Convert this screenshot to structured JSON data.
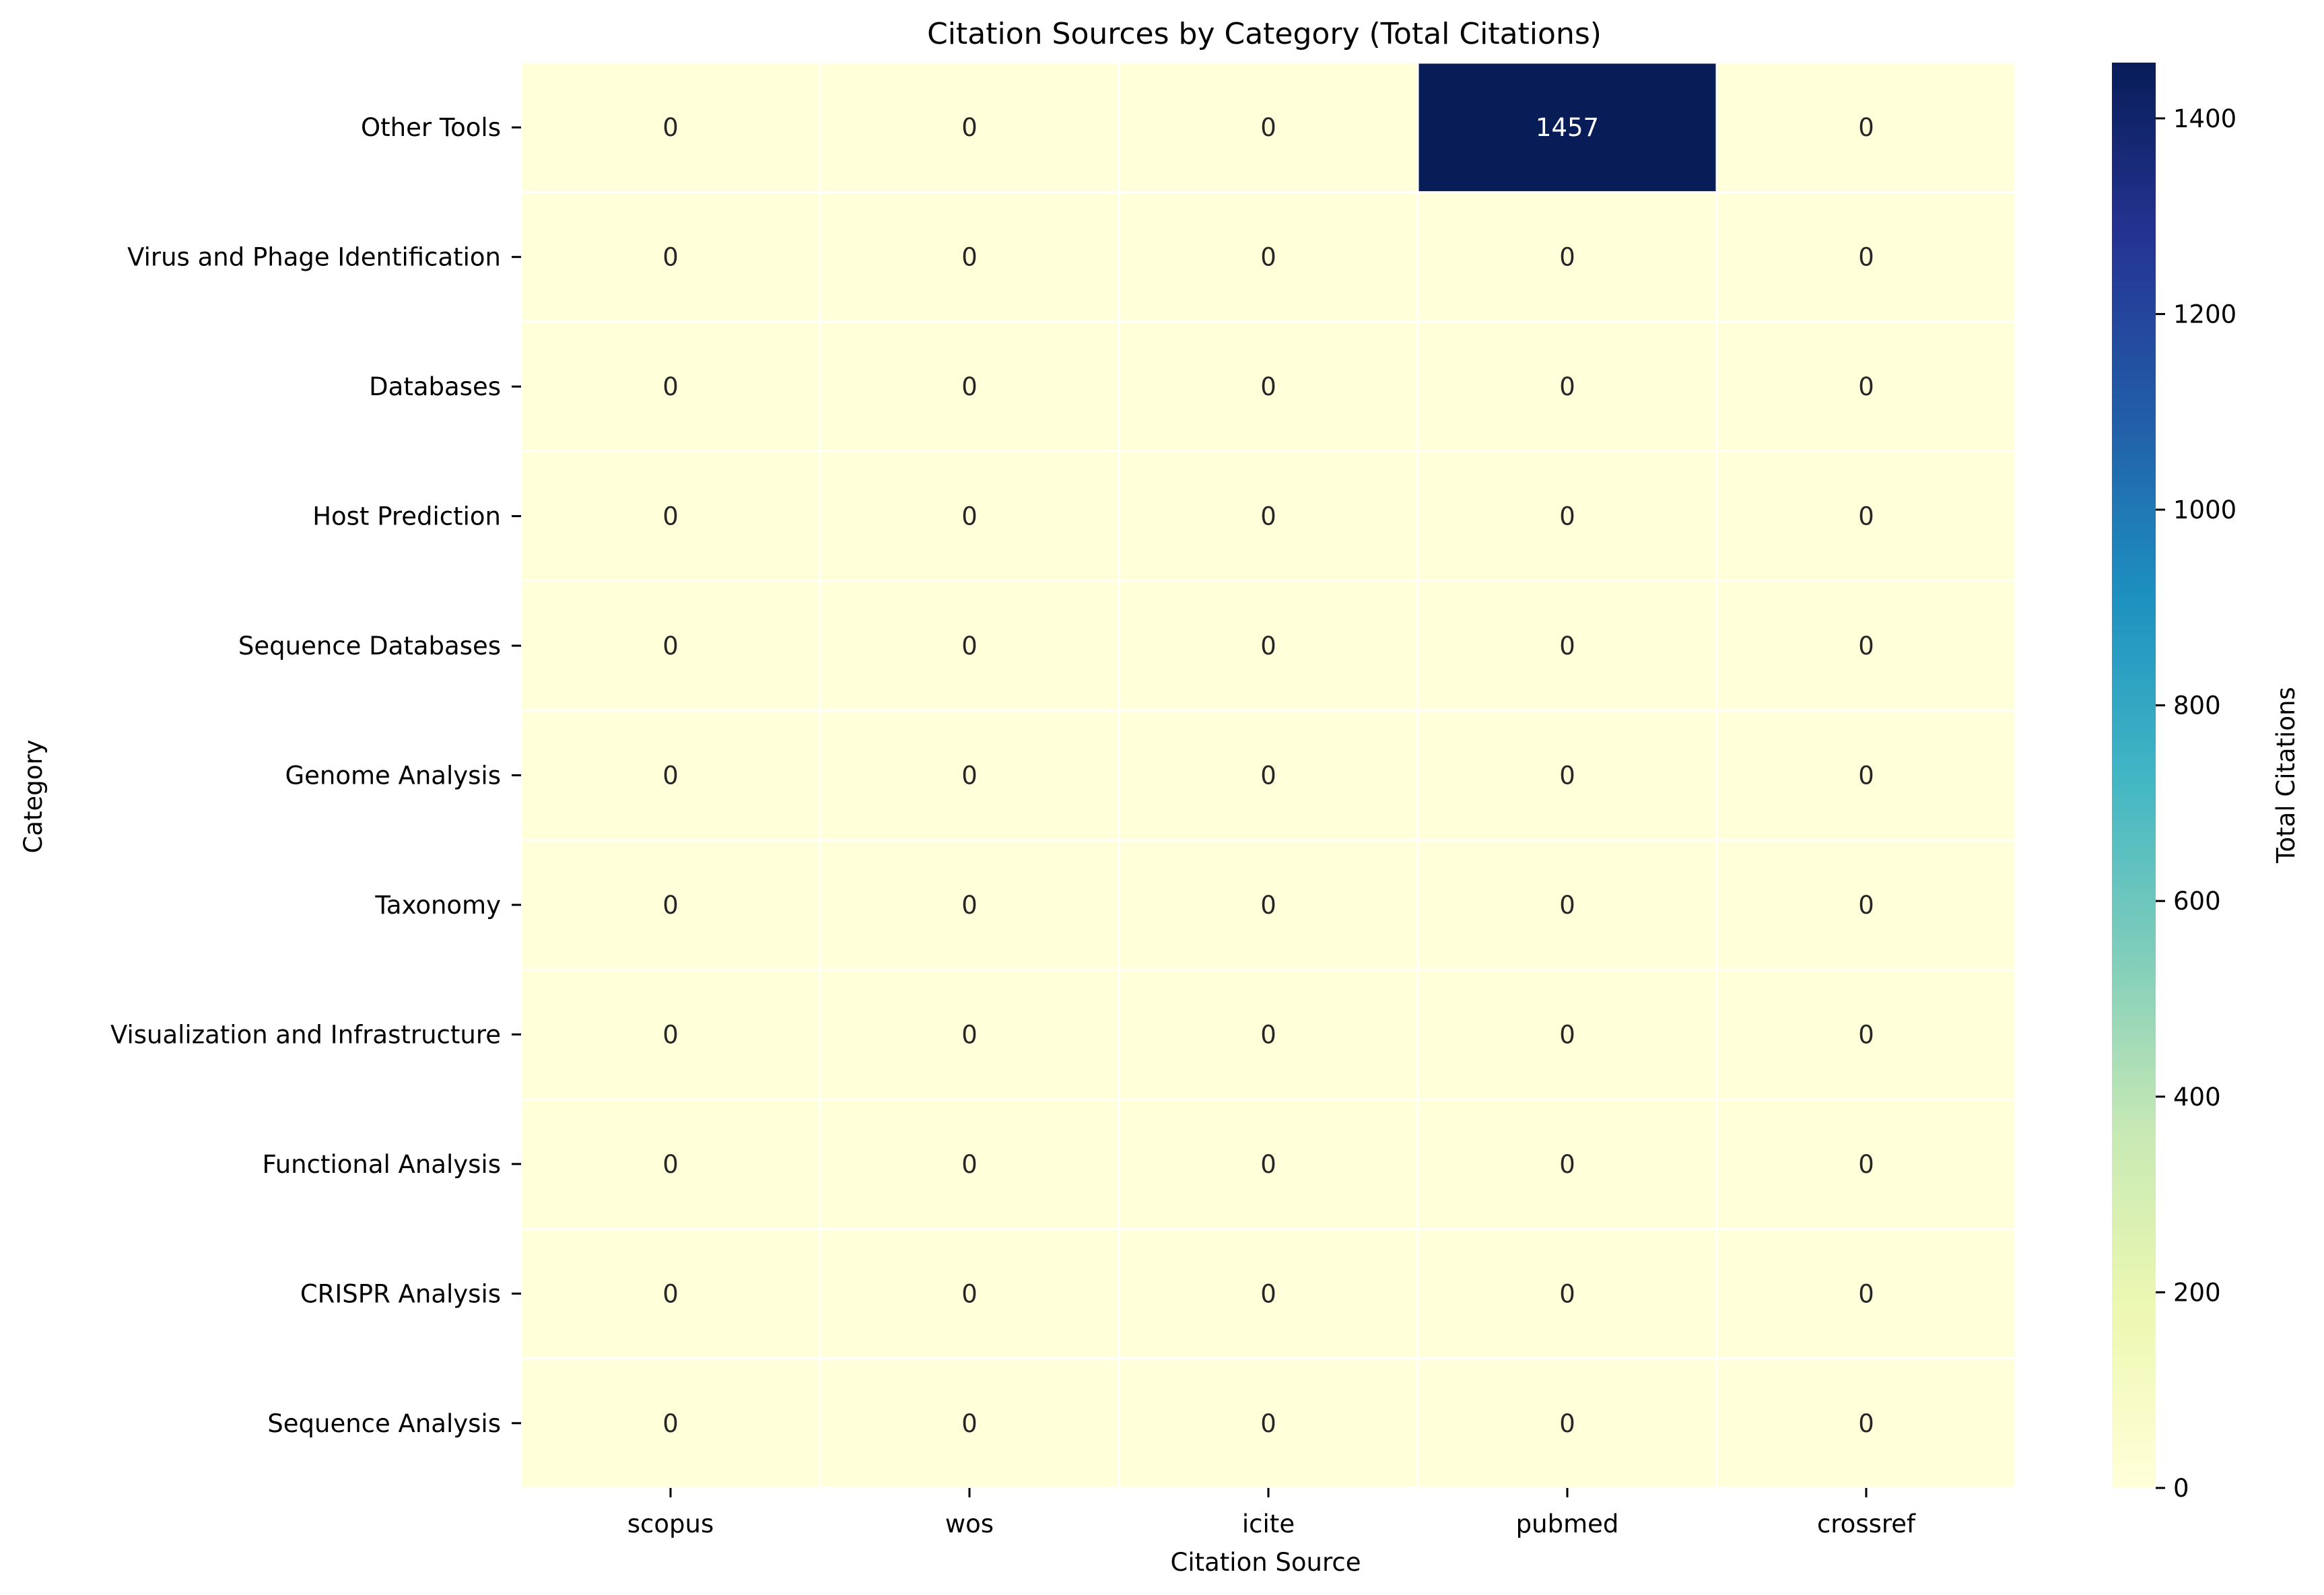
{
  "chart_data": {
    "type": "heatmap",
    "title": "Citation Sources by Category (Total Citations)",
    "xlabel": "Citation Source",
    "ylabel": "Category",
    "x_categories": [
      "scopus",
      "wos",
      "icite",
      "pubmed",
      "crossref"
    ],
    "y_categories": [
      "Other Tools",
      "Virus and Phage Identification",
      "Databases",
      "Host Prediction",
      "Sequence Databases",
      "Genome Analysis",
      "Taxonomy",
      "Visualization and Infrastructure",
      "Functional Analysis",
      "CRISPR Analysis",
      "Sequence Analysis"
    ],
    "values": [
      [
        0,
        0,
        0,
        1457,
        0
      ],
      [
        0,
        0,
        0,
        0,
        0
      ],
      [
        0,
        0,
        0,
        0,
        0
      ],
      [
        0,
        0,
        0,
        0,
        0
      ],
      [
        0,
        0,
        0,
        0,
        0
      ],
      [
        0,
        0,
        0,
        0,
        0
      ],
      [
        0,
        0,
        0,
        0,
        0
      ],
      [
        0,
        0,
        0,
        0,
        0
      ],
      [
        0,
        0,
        0,
        0,
        0
      ],
      [
        0,
        0,
        0,
        0,
        0
      ],
      [
        0,
        0,
        0,
        0,
        0
      ]
    ],
    "colorbar": {
      "label": "Total Citations",
      "range": [
        0,
        1457
      ],
      "ticks": [
        0,
        200,
        400,
        600,
        800,
        1000,
        1200,
        1400
      ],
      "colormap": "YlGnBu",
      "stops": [
        "#ffffd9",
        "#edf8b1",
        "#c7e9b4",
        "#7fcdbb",
        "#41b6c4",
        "#1d91c0",
        "#225ea8",
        "#253494",
        "#081d58"
      ]
    },
    "grid": false,
    "annotations": true,
    "annotation_text_dark": "#262626",
    "annotation_text_light": "#ffffff"
  }
}
